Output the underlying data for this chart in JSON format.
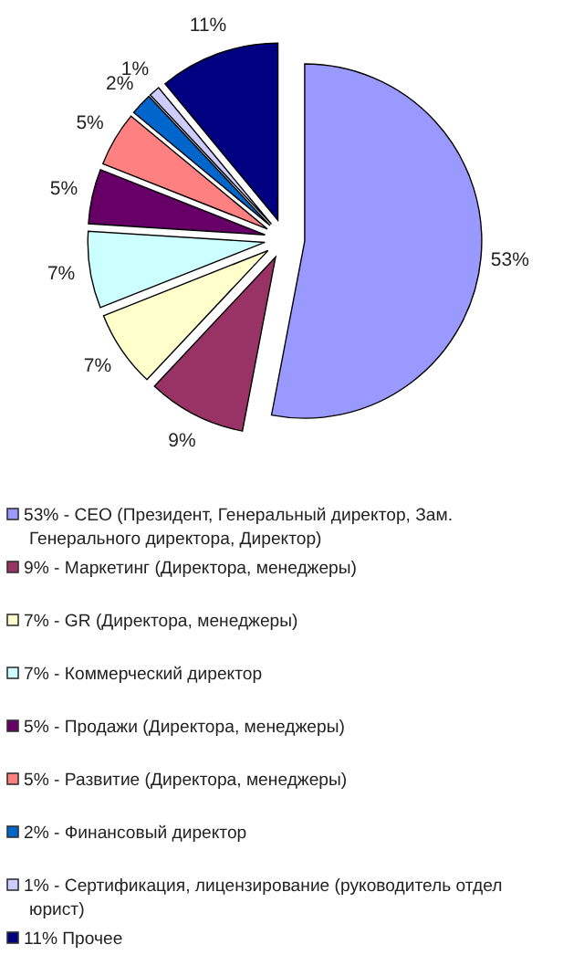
{
  "chart_data": {
    "type": "pie",
    "categories": [
      "53% - CEO (Президент, Генеральный директор, Зам. Генерального директора, Директор)",
      "9% - Маркетинг (Директора, менеджеры)",
      "7% - GR (Директора, менеджеры)",
      "7% - Коммерческий директор",
      "5% - Продажи (Директора, менеджеры)",
      "5% - Развитие (Директора, менеджеры)",
      "2% - Финансовый директор",
      "1% - Сертификация, лицензирование (руководитель отдел юрист)",
      "11% Прочее"
    ],
    "values": [
      53,
      9,
      7,
      7,
      5,
      5,
      2,
      1,
      11
    ],
    "value_labels": [
      "53%",
      "9%",
      "7%",
      "7%",
      "5%",
      "5%",
      "2%",
      "1%",
      "11%"
    ],
    "colors": [
      "#9999ff",
      "#993366",
      "#ffffcc",
      "#ccffff",
      "#660066",
      "#ff8080",
      "#0066cc",
      "#ccccff",
      "#000080"
    ],
    "legend": "bottom"
  }
}
